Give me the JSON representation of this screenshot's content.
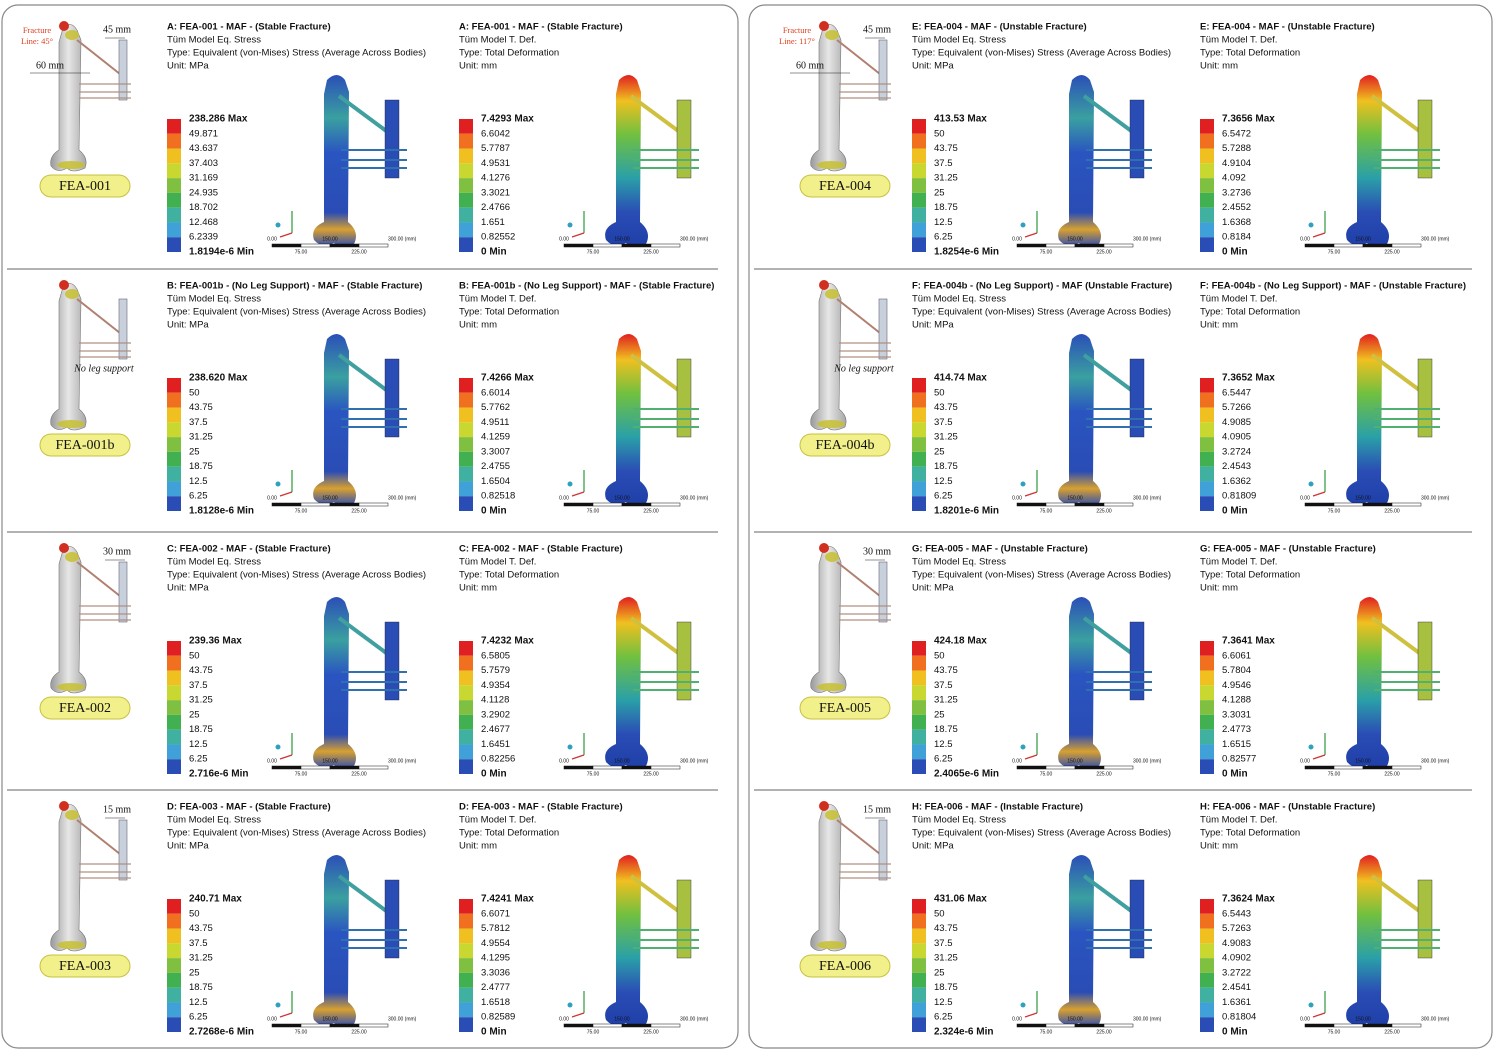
{
  "scale_bar": {
    "top": [
      "0.00",
      "150.00",
      "300.00 (mm)"
    ],
    "bottom": [
      "75.00",
      "225.00"
    ]
  },
  "panels": [
    {
      "rows": [
        {
          "label": "FEA-001",
          "fracture_line": [
            "Fracture",
            "Line: 45°"
          ],
          "offset": "45 mm",
          "length": "60 mm",
          "plots": [
            {
              "title": "A: FEA-001 - MAF - (Stable Fracture)",
              "lines": [
                "Tüm Model Eq. Stress",
                "Type: Equivalent (von-Mises) Stress (Average Across Bodies)",
                "Unit: MPa"
              ],
              "legend": [
                "238.286 Max",
                "49.871",
                "43.637",
                "37.403",
                "31.169",
                "24.935",
                "18.702",
                "12.468",
                "6.2339",
                "1.8194e-6 Min"
              ]
            },
            {
              "title": "A: FEA-001 - MAF - (Stable Fracture)",
              "lines": [
                "Tüm Model T. Def.",
                "Type: Total Deformation",
                "Unit: mm"
              ],
              "legend": [
                "7.4293 Max",
                "6.6042",
                "5.7787",
                "4.9531",
                "4.1276",
                "3.3021",
                "2.4766",
                "1.651",
                "0.82552",
                "0 Min"
              ]
            }
          ]
        },
        {
          "label": "FEA-001b",
          "note": "No leg support",
          "plots": [
            {
              "title": "B: FEA-001b - (No Leg Support) - MAF - (Stable Fracture)",
              "lines": [
                "Tüm Model Eq. Stress",
                "Type: Equivalent (von-Mises) Stress (Average Across Bodies)",
                "Unit: MPa"
              ],
              "legend": [
                "238.620 Max",
                "50",
                "43.75",
                "37.5",
                "31.25",
                "25",
                "18.75",
                "12.5",
                "6.25",
                "1.8128e-6 Min"
              ]
            },
            {
              "title": "B: FEA-001b - (No Leg Support) - MAF - (Stable Fracture)",
              "lines": [
                "Tüm Model T. Def.",
                "Type: Total Deformation",
                "Unit: mm"
              ],
              "legend": [
                "7.4266 Max",
                "6.6014",
                "5.7762",
                "4.9511",
                "4.1259",
                "3.3007",
                "2.4755",
                "1.6504",
                "0.82518",
                "0 Min"
              ]
            }
          ]
        },
        {
          "label": "FEA-002",
          "offset": "30 mm",
          "plots": [
            {
              "title": "C: FEA-002 - MAF - (Stable Fracture)",
              "lines": [
                "Tüm Model Eq. Stress",
                "Type: Equivalent (von-Mises) Stress (Average Across Bodies)",
                "Unit: MPa"
              ],
              "legend": [
                "239.36 Max",
                "50",
                "43.75",
                "37.5",
                "31.25",
                "25",
                "18.75",
                "12.5",
                "6.25",
                "2.716e-6 Min"
              ]
            },
            {
              "title": "C: FEA-002 - MAF - (Stable Fracture)",
              "lines": [
                "Tüm Model T. Def.",
                "Type: Total Deformation",
                "Unit: mm"
              ],
              "legend": [
                "7.4232 Max",
                "6.5805",
                "5.7579",
                "4.9354",
                "4.1128",
                "3.2902",
                "2.4677",
                "1.6451",
                "0.82256",
                "0 Min"
              ]
            }
          ]
        },
        {
          "label": "FEA-003",
          "offset": "15 mm",
          "plots": [
            {
              "title": "D: FEA-003 - MAF - (Stable Fracture)",
              "lines": [
                "Tüm Model Eq. Stress",
                "Type: Equivalent (von-Mises) Stress (Average Across Bodies)",
                "Unit: MPa"
              ],
              "legend": [
                "240.71 Max",
                "50",
                "43.75",
                "37.5",
                "31.25",
                "25",
                "18.75",
                "12.5",
                "6.25",
                "2.7268e-6 Min"
              ]
            },
            {
              "title": "D: FEA-003 - MAF - (Stable Fracture)",
              "lines": [
                "Tüm Model T. Def.",
                "Type: Total Deformation",
                "Unit: mm"
              ],
              "legend": [
                "7.4241 Max",
                "6.6071",
                "5.7812",
                "4.9554",
                "4.1295",
                "3.3036",
                "2.4777",
                "1.6518",
                "0.82589",
                "0 Min"
              ]
            }
          ]
        }
      ]
    },
    {
      "rows": [
        {
          "label": "FEA-004",
          "fracture_line": [
            "Fracture",
            "Line: 117°"
          ],
          "offset": "45 mm",
          "length": "60 mm",
          "plots": [
            {
              "title": "E: FEA-004 - MAF - (Unstable Fracture)",
              "lines": [
                "Tüm Model Eq. Stress",
                "Type: Equivalent (von-Mises) Stress (Average Across Bodies)",
                "Unit: MPa"
              ],
              "legend": [
                "413.53 Max",
                "50",
                "43.75",
                "37.5",
                "31.25",
                "25",
                "18.75",
                "12.5",
                "6.25",
                "1.8254e-6 Min"
              ]
            },
            {
              "title": "E: FEA-004 - MAF - (Unstable Fracture)",
              "lines": [
                "Tüm Model T. Def.",
                "Type: Total Deformation",
                "Unit: mm"
              ],
              "legend": [
                "7.3656 Max",
                "6.5472",
                "5.7288",
                "4.9104",
                "4.092",
                "3.2736",
                "2.4552",
                "1.6368",
                "0.8184",
                "0 Min"
              ]
            }
          ]
        },
        {
          "label": "FEA-004b",
          "note": "No leg support",
          "plots": [
            {
              "title": "F: FEA-004b - (No Leg Support) - MAF (Unstable Fracture)",
              "lines": [
                "Tüm Model Eq. Stress",
                "Type: Equivalent (von-Mises) Stress (Average Across Bodies)",
                "Unit: MPa"
              ],
              "legend": [
                "414.74 Max",
                "50",
                "43.75",
                "37.5",
                "31.25",
                "25",
                "18.75",
                "12.5",
                "6.25",
                "1.8201e-6 Min"
              ]
            },
            {
              "title": "F: FEA-004b - (No Leg Support) - MAF - (Unstable Fracture)",
              "lines": [
                "Tüm Model T. Def.",
                "Type: Total Deformation",
                "Unit: mm"
              ],
              "legend": [
                "7.3652 Max",
                "6.5447",
                "5.7266",
                "4.9085",
                "4.0905",
                "3.2724",
                "2.4543",
                "1.6362",
                "0.81809",
                "0 Min"
              ]
            }
          ]
        },
        {
          "label": "FEA-005",
          "offset": "30 mm",
          "plots": [
            {
              "title": "G: FEA-005 - MAF - (Unstable Fracture)",
              "lines": [
                "Tüm Model Eq. Stress",
                "Type: Equivalent (von-Mises) Stress (Average Across Bodies)",
                "Unit: MPa"
              ],
              "legend": [
                "424.18 Max",
                "50",
                "43.75",
                "37.5",
                "31.25",
                "25",
                "18.75",
                "12.5",
                "6.25",
                "2.4065e-6 Min"
              ]
            },
            {
              "title": "G: FEA-005 - MAF - (Unstable Fracture)",
              "lines": [
                "Tüm Model T. Def.",
                "Type: Total Deformation",
                "Unit: mm"
              ],
              "legend": [
                "7.3641 Max",
                "6.6061",
                "5.7804",
                "4.9546",
                "4.1288",
                "3.3031",
                "2.4773",
                "1.6515",
                "0.82577",
                "0 Min"
              ]
            }
          ]
        },
        {
          "label": "FEA-006",
          "offset": "15 mm",
          "plots": [
            {
              "title": "H: FEA-006 - MAF - (Instable Fracture)",
              "lines": [
                "Tüm Model Eq. Stress",
                "Type: Equivalent (von-Mises) Stress (Average Across Bodies)",
                "Unit: MPa"
              ],
              "legend": [
                "431.06 Max",
                "50",
                "43.75",
                "37.5",
                "31.25",
                "25",
                "18.75",
                "12.5",
                "6.25",
                "2.324e-6 Min"
              ]
            },
            {
              "title": "H: FEA-006 - MAF - (Unstable Fracture)",
              "lines": [
                "Tüm Model T. Def.",
                "Type: Total Deformation",
                "Unit: mm"
              ],
              "legend": [
                "7.3624 Max",
                "6.5443",
                "5.7263",
                "4.9083",
                "4.0902",
                "3.2722",
                "2.4541",
                "1.6361",
                "0.81804",
                "0 Min"
              ]
            }
          ]
        }
      ]
    }
  ]
}
